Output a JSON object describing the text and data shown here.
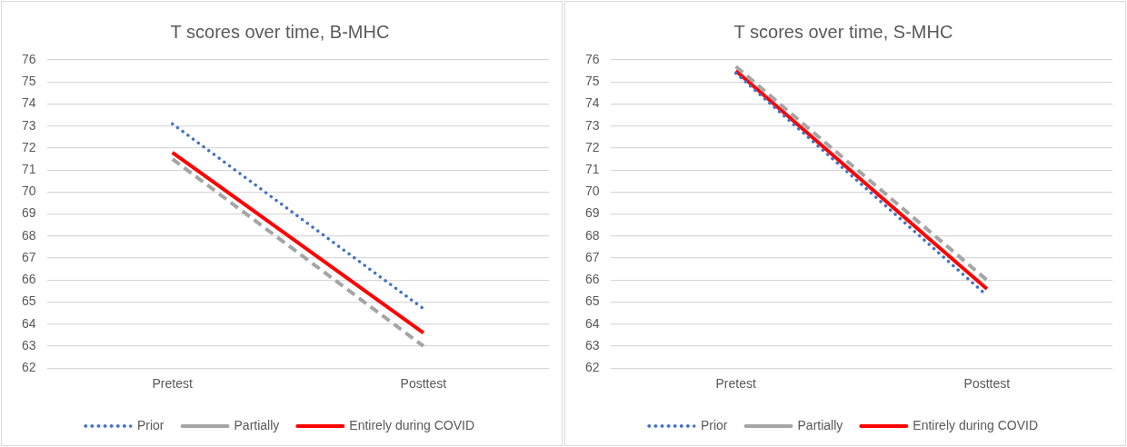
{
  "chart_data": [
    {
      "type": "line",
      "title": "T scores over time, B-MHC",
      "categories": [
        "Pretest",
        "Posttest"
      ],
      "ylim": [
        62,
        76
      ],
      "yticks": [
        62,
        63,
        64,
        65,
        66,
        67,
        68,
        69,
        70,
        71,
        72,
        73,
        74,
        75,
        76
      ],
      "grid": "y",
      "legend": "bottom",
      "series": [
        {
          "name": "Prior",
          "color": "#4472c4",
          "line_style": "dotted",
          "values": [
            73.1,
            64.7
          ]
        },
        {
          "name": "Partially",
          "color": "#a5a5a5",
          "line_style": "dashed",
          "values": [
            71.5,
            63.0
          ]
        },
        {
          "name": "Entirely during COVID",
          "color": "#ff0000",
          "line_style": "solid",
          "values": [
            71.8,
            63.6
          ]
        }
      ]
    },
    {
      "type": "line",
      "title": "T scores over time, S-MHC",
      "categories": [
        "Pretest",
        "Posttest"
      ],
      "ylim": [
        62,
        76
      ],
      "yticks": [
        62,
        63,
        64,
        65,
        66,
        67,
        68,
        69,
        70,
        71,
        72,
        73,
        74,
        75,
        76
      ],
      "grid": "y",
      "legend": "bottom",
      "series": [
        {
          "name": "Prior",
          "color": "#4472c4",
          "line_style": "dotted",
          "values": [
            75.4,
            65.3
          ]
        },
        {
          "name": "Partially",
          "color": "#a5a5a5",
          "line_style": "dashed",
          "values": [
            75.7,
            66.0
          ]
        },
        {
          "name": "Entirely during COVID",
          "color": "#ff0000",
          "line_style": "solid",
          "values": [
            75.5,
            65.6
          ]
        }
      ]
    }
  ]
}
